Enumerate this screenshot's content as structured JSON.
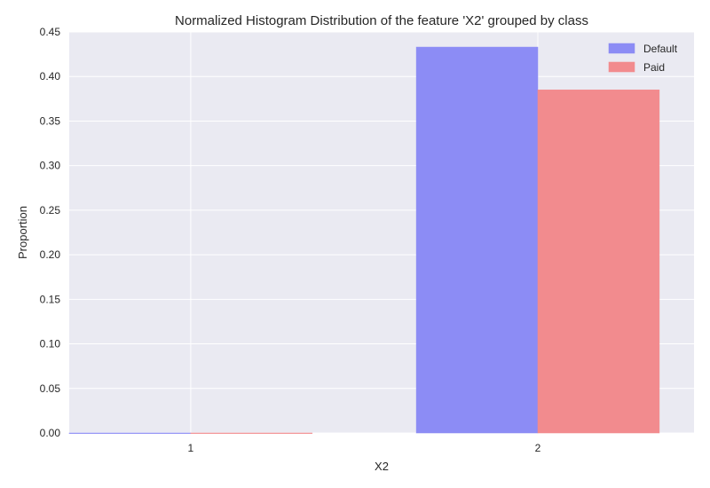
{
  "chart_data": {
    "type": "bar",
    "title": "Normalized Histogram Distribution of the feature 'X2' grouped by class",
    "xlabel": "X2",
    "ylabel": "Proportion",
    "categories": [
      "1",
      "2"
    ],
    "ylim": [
      0,
      0.45
    ],
    "yticks": [
      "0.00",
      "0.05",
      "0.10",
      "0.15",
      "0.20",
      "0.25",
      "0.30",
      "0.35",
      "0.40",
      "0.45"
    ],
    "grid": true,
    "legend_position": "top-right",
    "series": [
      {
        "name": "Default",
        "values": [
          0.0,
          0.433
        ],
        "color": "#8c8cf5"
      },
      {
        "name": "Paid",
        "values": [
          0.0,
          0.385
        ],
        "color": "#f28b8e"
      }
    ]
  }
}
